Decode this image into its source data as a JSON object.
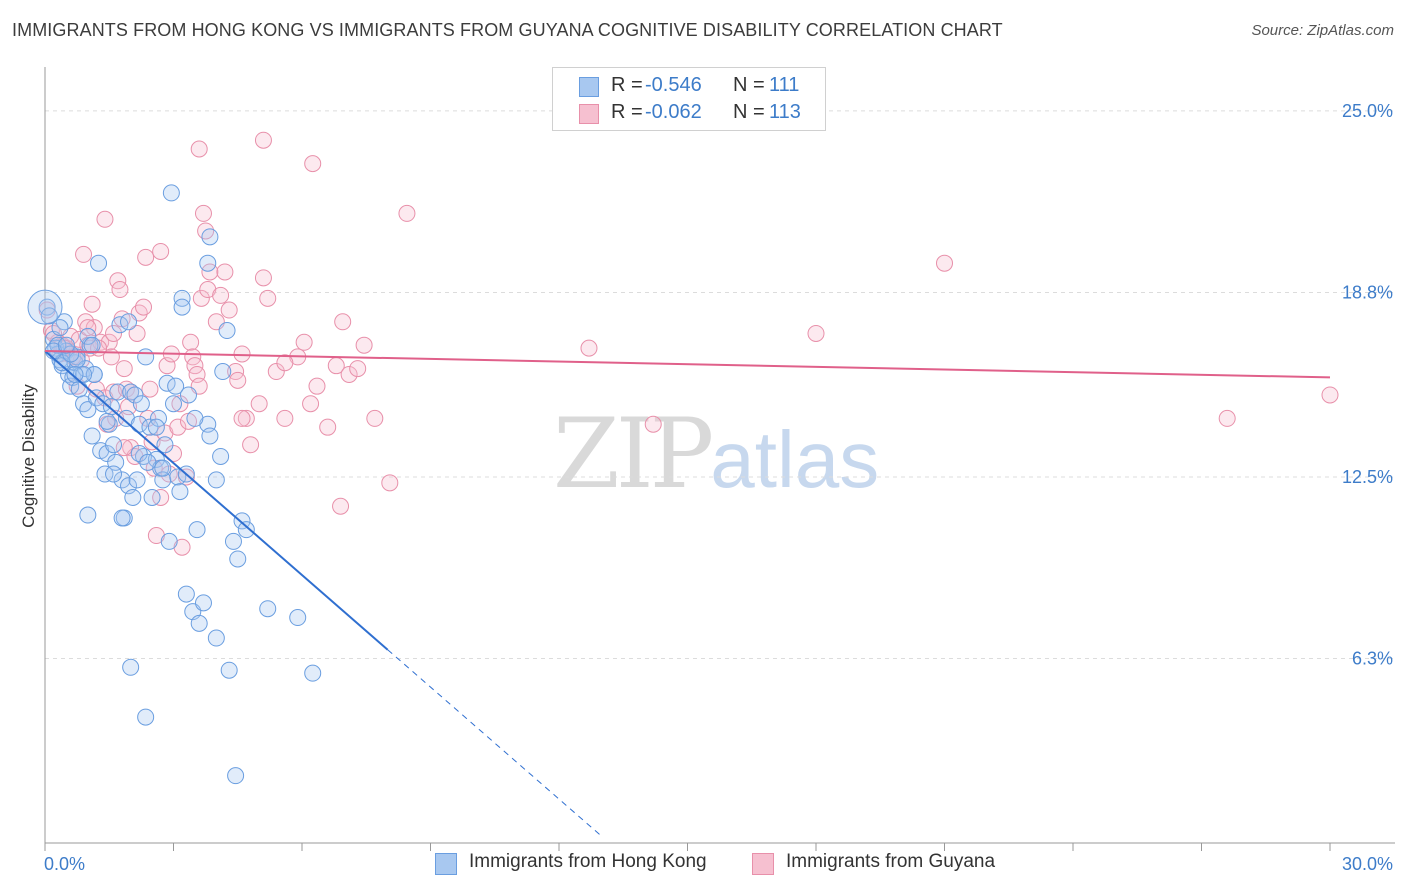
{
  "title": "IMMIGRANTS FROM HONG KONG VS IMMIGRANTS FROM GUYANA COGNITIVE DISABILITY CORRELATION CHART",
  "source": "Source: ZipAtlas.com",
  "watermark": {
    "zip": "ZIP",
    "atlas": "atlas"
  },
  "legend": {
    "rows": [
      {
        "r_label": "R =",
        "r_value": "-0.546",
        "n_label": "N =",
        "n_value": "111",
        "color": "#a8c8f0",
        "border": "#6a9ee0"
      },
      {
        "r_label": "R =",
        "r_value": "-0.062",
        "n_label": "N =",
        "n_value": "113",
        "color": "#f6c0d0",
        "border": "#e890aa"
      }
    ]
  },
  "bottom_legend": [
    {
      "label": "Immigrants from Hong Kong",
      "color": "#a8c8f0",
      "border": "#6a9ee0"
    },
    {
      "label": "Immigrants from Guyana",
      "color": "#f6c0d0",
      "border": "#e890aa"
    }
  ],
  "chart_data": {
    "type": "scatter",
    "title": "IMMIGRANTS FROM HONG KONG VS IMMIGRANTS FROM GUYANA COGNITIVE DISABILITY CORRELATION CHART",
    "xlabel": "",
    "ylabel": "Cognitive Disability",
    "xlim": [
      0,
      30
    ],
    "ylim": [
      0,
      26.5
    ],
    "x_tick_labels": [
      "0.0%",
      "30.0%"
    ],
    "y_ticks": [
      6.3,
      12.5,
      18.8,
      25.0
    ],
    "y_tick_labels": [
      "6.3%",
      "12.5%",
      "18.8%",
      "25.0%"
    ],
    "grid": true,
    "legend_position": "top-center",
    "colors": {
      "hong_kong": "#6a9ee0",
      "hong_kong_line": "#2f6fd0",
      "guyana": "#e890aa",
      "guyana_line": "#e0608a"
    },
    "series": [
      {
        "name": "Immigrants from Hong Kong",
        "trend": {
          "x0": 0.0,
          "y0": 16.8,
          "x1": 8.0,
          "y1": 6.6,
          "dash_to_x": 13.0
        },
        "points": [
          [
            0.05,
            18.3
          ],
          [
            0.1,
            18.0
          ],
          [
            0.2,
            17.2
          ],
          [
            0.25,
            16.9
          ],
          [
            0.3,
            16.7
          ],
          [
            0.35,
            16.5
          ],
          [
            0.4,
            16.3
          ],
          [
            0.45,
            17.8
          ],
          [
            0.5,
            16.8
          ],
          [
            0.55,
            16.0
          ],
          [
            0.6,
            15.6
          ],
          [
            0.65,
            15.9
          ],
          [
            0.7,
            16.4
          ],
          [
            0.75,
            16.6
          ],
          [
            0.8,
            15.5
          ],
          [
            0.85,
            16.0
          ],
          [
            0.9,
            15.0
          ],
          [
            0.95,
            16.2
          ],
          [
            1.0,
            14.8
          ],
          [
            1.05,
            17.0
          ],
          [
            1.1,
            13.9
          ],
          [
            1.15,
            16.0
          ],
          [
            1.2,
            15.2
          ],
          [
            1.25,
            19.8
          ],
          [
            1.3,
            13.4
          ],
          [
            1.35,
            15.0
          ],
          [
            1.4,
            12.6
          ],
          [
            1.45,
            13.3
          ],
          [
            1.5,
            14.3
          ],
          [
            1.55,
            14.9
          ],
          [
            1.6,
            13.6
          ],
          [
            1.65,
            13.0
          ],
          [
            1.7,
            15.4
          ],
          [
            1.75,
            17.7
          ],
          [
            1.8,
            12.4
          ],
          [
            1.85,
            11.1
          ],
          [
            1.9,
            14.5
          ],
          [
            1.95,
            12.2
          ],
          [
            2.0,
            15.4
          ],
          [
            2.05,
            11.8
          ],
          [
            2.1,
            15.3
          ],
          [
            2.15,
            12.4
          ],
          [
            2.2,
            14.3
          ],
          [
            2.25,
            15.0
          ],
          [
            2.3,
            13.2
          ],
          [
            2.35,
            16.6
          ],
          [
            2.45,
            14.2
          ],
          [
            2.5,
            11.8
          ],
          [
            2.6,
            13.1
          ],
          [
            2.65,
            14.5
          ],
          [
            2.7,
            12.8
          ],
          [
            2.75,
            12.4
          ],
          [
            2.8,
            13.6
          ],
          [
            2.85,
            15.7
          ],
          [
            2.9,
            10.3
          ],
          [
            3.0,
            15.0
          ],
          [
            3.1,
            12.5
          ],
          [
            3.15,
            12.0
          ],
          [
            3.2,
            18.6
          ],
          [
            3.3,
            8.5
          ],
          [
            3.35,
            15.3
          ],
          [
            3.45,
            7.9
          ],
          [
            3.55,
            10.7
          ],
          [
            3.6,
            7.5
          ],
          [
            3.7,
            8.2
          ],
          [
            3.8,
            14.3
          ],
          [
            3.85,
            13.9
          ],
          [
            4.0,
            12.4
          ],
          [
            4.1,
            13.2
          ],
          [
            4.15,
            16.1
          ],
          [
            4.25,
            17.5
          ],
          [
            4.4,
            10.3
          ],
          [
            4.5,
            9.7
          ],
          [
            4.6,
            11.0
          ],
          [
            4.7,
            10.7
          ],
          [
            5.2,
            8.0
          ],
          [
            5.9,
            7.7
          ],
          [
            6.25,
            5.8
          ],
          [
            2.0,
            6.0
          ],
          [
            2.35,
            4.3
          ],
          [
            4.0,
            7.0
          ],
          [
            4.3,
            5.9
          ],
          [
            4.45,
            2.3
          ],
          [
            1.0,
            11.2
          ],
          [
            1.8,
            11.1
          ],
          [
            2.95,
            22.2
          ],
          [
            3.2,
            18.3
          ],
          [
            3.8,
            19.8
          ],
          [
            3.85,
            20.7
          ],
          [
            0.35,
            17.6
          ],
          [
            0.75,
            16.5
          ],
          [
            1.0,
            17.3
          ],
          [
            1.15,
            16.0
          ],
          [
            0.4,
            16.4
          ],
          [
            0.6,
            16.7
          ],
          [
            0.9,
            16.0
          ],
          [
            1.45,
            14.4
          ],
          [
            2.2,
            13.3
          ],
          [
            2.6,
            14.2
          ],
          [
            3.05,
            15.6
          ],
          [
            3.5,
            14.5
          ],
          [
            0.3,
            17.0
          ],
          [
            0.7,
            16.0
          ],
          [
            1.1,
            17.0
          ],
          [
            1.6,
            12.6
          ],
          [
            2.4,
            13.0
          ],
          [
            2.75,
            12.8
          ],
          [
            3.3,
            12.6
          ],
          [
            1.95,
            17.8
          ],
          [
            0.2,
            16.8
          ],
          [
            0.5,
            17.0
          ]
        ]
      },
      {
        "name": "Immigrants from Guyana",
        "trend": {
          "x0": 0.0,
          "y0": 16.8,
          "x1": 30.0,
          "y1": 15.9
        },
        "points": [
          [
            0.05,
            18.2
          ],
          [
            0.15,
            17.5
          ],
          [
            0.3,
            17.1
          ],
          [
            0.4,
            17.0
          ],
          [
            0.5,
            16.9
          ],
          [
            0.55,
            16.7
          ],
          [
            0.6,
            17.3
          ],
          [
            0.7,
            16.6
          ],
          [
            0.75,
            15.6
          ],
          [
            0.8,
            17.2
          ],
          [
            0.85,
            16.5
          ],
          [
            0.9,
            20.1
          ],
          [
            0.95,
            17.8
          ],
          [
            1.0,
            17.0
          ],
          [
            1.05,
            16.9
          ],
          [
            1.1,
            18.4
          ],
          [
            1.15,
            17.6
          ],
          [
            1.2,
            15.5
          ],
          [
            1.3,
            17.1
          ],
          [
            1.4,
            15.2
          ],
          [
            1.45,
            14.3
          ],
          [
            1.5,
            17.1
          ],
          [
            1.55,
            16.6
          ],
          [
            1.6,
            15.4
          ],
          [
            1.65,
            14.5
          ],
          [
            1.7,
            19.2
          ],
          [
            1.75,
            18.9
          ],
          [
            1.8,
            17.9
          ],
          [
            1.85,
            16.2
          ],
          [
            1.9,
            15.5
          ],
          [
            1.95,
            14.9
          ],
          [
            2.0,
            13.5
          ],
          [
            2.1,
            13.2
          ],
          [
            2.15,
            17.4
          ],
          [
            2.2,
            18.1
          ],
          [
            2.3,
            18.3
          ],
          [
            2.35,
            20.0
          ],
          [
            2.45,
            15.5
          ],
          [
            2.5,
            13.7
          ],
          [
            2.55,
            12.8
          ],
          [
            2.6,
            10.5
          ],
          [
            2.7,
            11.8
          ],
          [
            2.8,
            14.0
          ],
          [
            2.85,
            16.3
          ],
          [
            2.9,
            12.6
          ],
          [
            3.0,
            13.3
          ],
          [
            3.1,
            14.2
          ],
          [
            3.15,
            15.0
          ],
          [
            3.2,
            10.1
          ],
          [
            3.3,
            12.5
          ],
          [
            3.4,
            17.1
          ],
          [
            3.45,
            16.6
          ],
          [
            3.5,
            16.3
          ],
          [
            3.55,
            16.0
          ],
          [
            3.6,
            15.6
          ],
          [
            3.65,
            18.6
          ],
          [
            3.7,
            21.5
          ],
          [
            3.75,
            20.9
          ],
          [
            3.8,
            18.9
          ],
          [
            3.85,
            19.5
          ],
          [
            4.0,
            17.8
          ],
          [
            4.1,
            18.7
          ],
          [
            4.2,
            19.5
          ],
          [
            4.3,
            18.2
          ],
          [
            4.45,
            16.1
          ],
          [
            4.5,
            15.8
          ],
          [
            4.6,
            16.7
          ],
          [
            4.7,
            14.5
          ],
          [
            4.8,
            13.6
          ],
          [
            5.0,
            15.0
          ],
          [
            5.1,
            19.3
          ],
          [
            5.2,
            18.6
          ],
          [
            5.4,
            16.1
          ],
          [
            5.6,
            14.5
          ],
          [
            5.9,
            16.6
          ],
          [
            6.05,
            17.1
          ],
          [
            6.2,
            15.0
          ],
          [
            6.35,
            15.6
          ],
          [
            6.6,
            14.2
          ],
          [
            6.8,
            16.3
          ],
          [
            6.95,
            17.8
          ],
          [
            7.1,
            16.0
          ],
          [
            7.3,
            16.2
          ],
          [
            7.45,
            17.0
          ],
          [
            7.7,
            14.5
          ],
          [
            8.05,
            12.3
          ],
          [
            8.45,
            21.5
          ],
          [
            6.9,
            11.5
          ],
          [
            12.7,
            16.9
          ],
          [
            14.2,
            14.3
          ],
          [
            18.0,
            17.4
          ],
          [
            21.0,
            19.8
          ],
          [
            27.6,
            14.5
          ],
          [
            30.0,
            15.3
          ],
          [
            1.4,
            21.3
          ],
          [
            2.7,
            20.2
          ],
          [
            3.6,
            23.7
          ],
          [
            5.1,
            24.0
          ],
          [
            6.25,
            23.2
          ],
          [
            2.0,
            15.4
          ],
          [
            2.4,
            14.5
          ],
          [
            3.35,
            14.4
          ],
          [
            4.6,
            14.5
          ],
          [
            5.6,
            16.4
          ],
          [
            1.25,
            16.9
          ],
          [
            0.35,
            16.7
          ],
          [
            0.65,
            16.6
          ],
          [
            1.85,
            13.5
          ],
          [
            2.95,
            16.7
          ],
          [
            0.2,
            17.4
          ],
          [
            0.45,
            16.9
          ],
          [
            1.0,
            17.6
          ],
          [
            1.6,
            17.4
          ]
        ]
      }
    ]
  }
}
